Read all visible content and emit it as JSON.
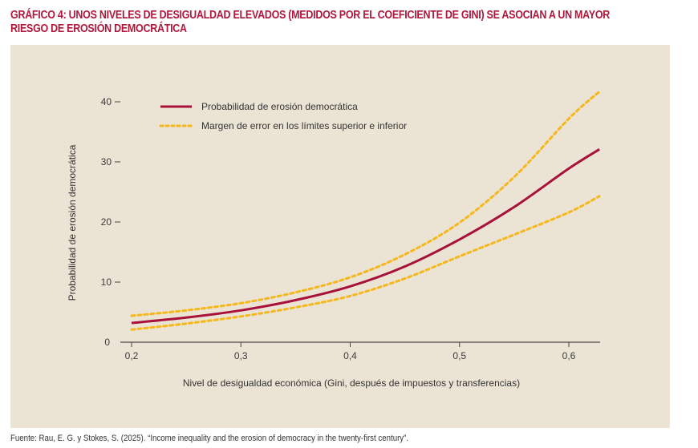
{
  "title": "GRÁFICO 4: UNOS NIVELES DE DESIGUALDAD ELEVADOS (MEDIDOS POR EL COEFICIENTE DE GINI) SE ASOCIAN A UN MAYOR RIESGO DE EROSIÓN DEMOCRÁTICA",
  "title_lines": [
    "GRÁFICO 4: UNOS NIVELES DE DESIGUALDAD ELEVADOS (MEDIDOS POR EL COEFICIENTE DE GINI) SE ASOCIAN A UN MAYOR",
    "RIESGO DE EROSIÓN DEMOCRÁTICA"
  ],
  "source": "Fuente: Rau, E. G. y Stokes, S. (2025). “Income inequality and the erosion of democracy in the twenty-first century”.",
  "colors": {
    "title": "#b0163a",
    "main_line": "#a8123a",
    "error_line": "#f5b71c",
    "panel": "#ebe4d5"
  },
  "chart_data": {
    "type": "line",
    "title": "",
    "xlabel": "Nivel de desigualdad económica (Gini, después de impuestos y transferencias)",
    "ylabel": "Probabilidad de erosión democrática",
    "xlim": [
      0.2,
      0.628
    ],
    "ylim": [
      0,
      40
    ],
    "xticks": [
      0.2,
      0.3,
      0.4,
      0.5,
      0.6
    ],
    "xtick_labels": [
      "0,2",
      "0,3",
      "0,4",
      "0,5",
      "0,6"
    ],
    "yticks": [
      0,
      10,
      20,
      30,
      40
    ],
    "ytick_labels": [
      "0",
      "10",
      "20",
      "30",
      "40"
    ],
    "grid": false,
    "legend_position": "top-left",
    "x": [
      0.2,
      0.25,
      0.3,
      0.35,
      0.4,
      0.45,
      0.5,
      0.55,
      0.6,
      0.628
    ],
    "series": [
      {
        "name": "Probabilidad de erosión democrática",
        "style": "solid",
        "values": [
          3.2,
          4.1,
          5.3,
          7.0,
          9.3,
          12.6,
          17.1,
          22.5,
          28.9,
          32.1
        ]
      },
      {
        "name": "Margen de error en los límites superior e inferior",
        "style": "dashed",
        "role": "upper",
        "values": [
          4.4,
          5.3,
          6.5,
          8.3,
          10.8,
          14.6,
          19.9,
          27.5,
          37.2,
          41.7
        ]
      },
      {
        "name": "Margen de error en los límites superior e inferior",
        "style": "dashed",
        "role": "lower",
        "values": [
          2.1,
          3.1,
          4.3,
          5.8,
          7.7,
          10.6,
          14.3,
          17.9,
          21.6,
          24.3
        ]
      }
    ],
    "legend": [
      {
        "label": "Probabilidad de erosión democrática",
        "style": "solid"
      },
      {
        "label": "Margen de error en los límites superior e inferior",
        "style": "dashed"
      }
    ]
  }
}
